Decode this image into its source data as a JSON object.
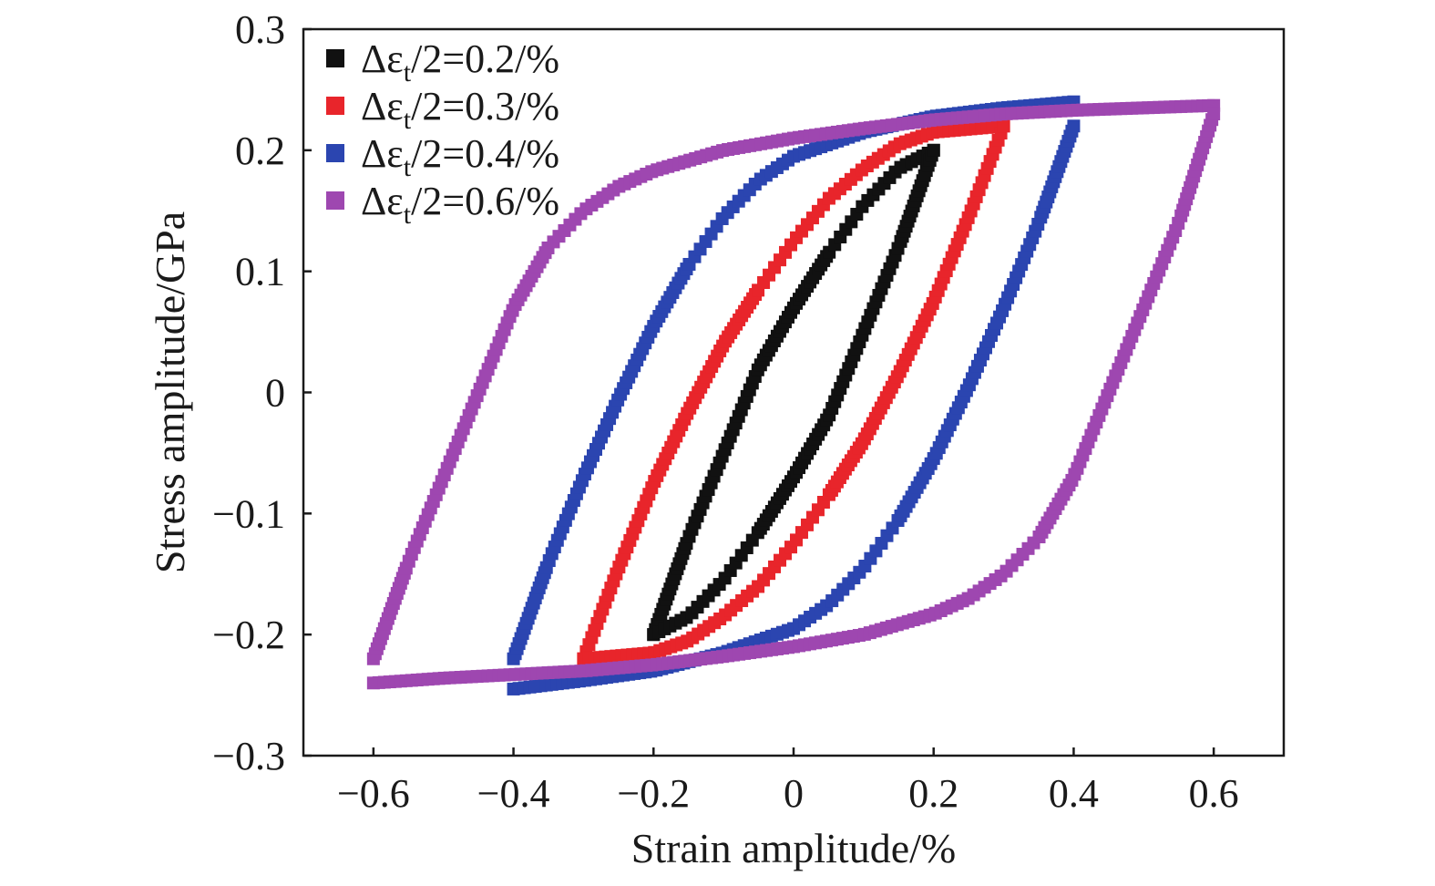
{
  "chart_data": {
    "type": "scatter",
    "title": "",
    "xlabel": "Strain amplitude/%",
    "ylabel": "Stress amplitude/GPa",
    "xlim": [
      -0.7,
      0.7
    ],
    "ylim": [
      -0.3,
      0.3
    ],
    "xticks": [
      -0.6,
      -0.4,
      -0.2,
      0,
      0.2,
      0.4,
      0.6
    ],
    "xtick_labels": [
      "−0.6",
      "−0.4",
      "−0.2",
      "0",
      "0.2",
      "0.4",
      "0.6"
    ],
    "yticks": [
      -0.3,
      -0.2,
      -0.1,
      0,
      0.1,
      0.2,
      0.3
    ],
    "ytick_labels": [
      "−0.3",
      "−0.2",
      "−0.1",
      "0",
      "0.1",
      "0.2",
      "0.3"
    ],
    "grid": false,
    "legend_position": "top-left",
    "series": [
      {
        "name": "Δεt/2=0.2/%",
        "legend_main": "Δε",
        "legend_sub": "t",
        "legend_rest": "/2=0.2/%",
        "color": "#111111",
        "strain_amplitude": 0.2,
        "stress_peak": 0.2,
        "stress_valley": -0.2,
        "upper_branch": [
          [
            -0.2,
            -0.2
          ],
          [
            -0.15,
            -0.12
          ],
          [
            -0.1,
            -0.05
          ],
          [
            -0.05,
            0.02
          ],
          [
            0.0,
            0.07
          ],
          [
            0.05,
            0.115
          ],
          [
            0.1,
            0.155
          ],
          [
            0.15,
            0.185
          ],
          [
            0.2,
            0.2
          ]
        ],
        "lower_branch": [
          [
            0.2,
            0.2
          ],
          [
            0.15,
            0.12
          ],
          [
            0.1,
            0.05
          ],
          [
            0.05,
            -0.02
          ],
          [
            0.0,
            -0.07
          ],
          [
            -0.05,
            -0.115
          ],
          [
            -0.1,
            -0.155
          ],
          [
            -0.15,
            -0.185
          ],
          [
            -0.2,
            -0.2
          ]
        ]
      },
      {
        "name": "Δεt/2=0.3/%",
        "legend_main": "Δε",
        "legend_sub": "t",
        "legend_rest": "/2=0.3/%",
        "color": "#e8252b",
        "strain_amplitude": 0.3,
        "stress_peak": 0.22,
        "stress_valley": -0.22,
        "upper_branch": [
          [
            -0.3,
            -0.22
          ],
          [
            -0.25,
            -0.145
          ],
          [
            -0.2,
            -0.075
          ],
          [
            -0.15,
            -0.015
          ],
          [
            -0.1,
            0.04
          ],
          [
            -0.05,
            0.085
          ],
          [
            0.0,
            0.125
          ],
          [
            0.05,
            0.16
          ],
          [
            0.1,
            0.185
          ],
          [
            0.15,
            0.205
          ],
          [
            0.2,
            0.215
          ],
          [
            0.3,
            0.22
          ]
        ],
        "lower_branch": [
          [
            0.3,
            0.22
          ],
          [
            0.25,
            0.145
          ],
          [
            0.2,
            0.075
          ],
          [
            0.15,
            0.015
          ],
          [
            0.1,
            -0.04
          ],
          [
            0.05,
            -0.085
          ],
          [
            0.0,
            -0.125
          ],
          [
            -0.05,
            -0.16
          ],
          [
            -0.1,
            -0.185
          ],
          [
            -0.15,
            -0.205
          ],
          [
            -0.2,
            -0.215
          ],
          [
            -0.3,
            -0.22
          ]
        ]
      },
      {
        "name": "Δεt/2=0.4/%",
        "legend_main": "Δε",
        "legend_sub": "t",
        "legend_rest": "/2=0.4/%",
        "color": "#2b45b0",
        "strain_amplitude": 0.4,
        "stress_peak": 0.24,
        "stress_valley": -0.245,
        "upper_branch": [
          [
            -0.4,
            -0.22
          ],
          [
            -0.35,
            -0.14
          ],
          [
            -0.3,
            -0.07
          ],
          [
            -0.25,
            -0.005
          ],
          [
            -0.2,
            0.055
          ],
          [
            -0.15,
            0.105
          ],
          [
            -0.1,
            0.145
          ],
          [
            -0.05,
            0.175
          ],
          [
            0.0,
            0.195
          ],
          [
            0.1,
            0.215
          ],
          [
            0.2,
            0.228
          ],
          [
            0.3,
            0.235
          ],
          [
            0.4,
            0.24
          ]
        ],
        "lower_branch": [
          [
            0.4,
            0.22
          ],
          [
            0.35,
            0.14
          ],
          [
            0.3,
            0.07
          ],
          [
            0.25,
            0.005
          ],
          [
            0.2,
            -0.055
          ],
          [
            0.15,
            -0.105
          ],
          [
            0.1,
            -0.145
          ],
          [
            0.05,
            -0.175
          ],
          [
            0.0,
            -0.195
          ],
          [
            -0.1,
            -0.215
          ],
          [
            -0.2,
            -0.23
          ],
          [
            -0.3,
            -0.238
          ],
          [
            -0.4,
            -0.245
          ]
        ]
      },
      {
        "name": "Δεt/2=0.6/%",
        "legend_main": "Δε",
        "legend_sub": "t",
        "legend_rest": "/2=0.6/%",
        "color": "#9e47b0",
        "strain_amplitude": 0.6,
        "stress_peak": 0.237,
        "stress_valley": -0.24,
        "upper_branch": [
          [
            -0.6,
            -0.22
          ],
          [
            -0.55,
            -0.14
          ],
          [
            -0.5,
            -0.07
          ],
          [
            -0.45,
            0.0
          ],
          [
            -0.4,
            0.07
          ],
          [
            -0.35,
            0.12
          ],
          [
            -0.3,
            0.15
          ],
          [
            -0.25,
            0.17
          ],
          [
            -0.2,
            0.183
          ],
          [
            -0.1,
            0.2
          ],
          [
            0.0,
            0.21
          ],
          [
            0.1,
            0.218
          ],
          [
            0.2,
            0.225
          ],
          [
            0.3,
            0.23
          ],
          [
            0.4,
            0.233
          ],
          [
            0.5,
            0.235
          ],
          [
            0.6,
            0.237
          ]
        ],
        "lower_branch": [
          [
            0.6,
            0.23
          ],
          [
            0.55,
            0.14
          ],
          [
            0.5,
            0.07
          ],
          [
            0.45,
            0.0
          ],
          [
            0.4,
            -0.07
          ],
          [
            0.35,
            -0.12
          ],
          [
            0.3,
            -0.15
          ],
          [
            0.25,
            -0.17
          ],
          [
            0.2,
            -0.183
          ],
          [
            0.1,
            -0.2
          ],
          [
            0.0,
            -0.21
          ],
          [
            -0.1,
            -0.218
          ],
          [
            -0.2,
            -0.225
          ],
          [
            -0.3,
            -0.23
          ],
          [
            -0.4,
            -0.233
          ],
          [
            -0.5,
            -0.236
          ],
          [
            -0.6,
            -0.24
          ]
        ]
      }
    ]
  }
}
